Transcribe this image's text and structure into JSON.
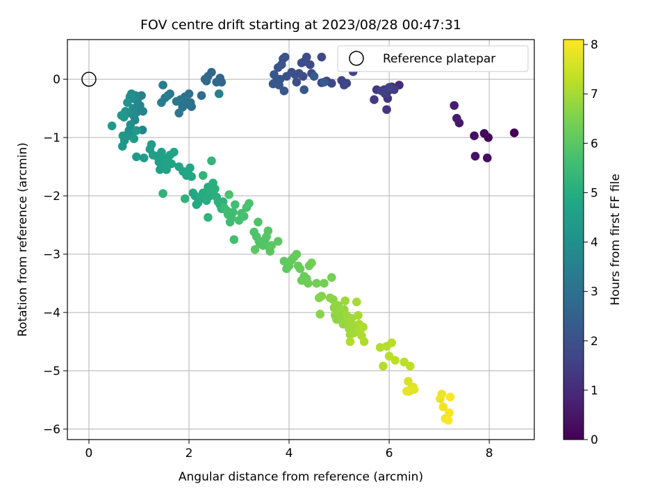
{
  "chart_data": {
    "type": "scatter",
    "title": "FOV centre drift starting at 2023/08/28 00:47:31",
    "xlabel": "Angular distance from reference (arcmin)",
    "ylabel": "Rotation from reference (arcmin)",
    "xlim": [
      -0.43,
      8.9
    ],
    "ylim": [
      -6.18,
      0.68
    ],
    "x_ticks": [
      0,
      2,
      4,
      6,
      8
    ],
    "y_ticks": [
      0,
      -1,
      -2,
      -3,
      -4,
      -5,
      -6
    ],
    "x_tick_labels": [
      "0",
      "2",
      "4",
      "6",
      "8"
    ],
    "y_tick_labels": [
      "0",
      "−1",
      "−2",
      "−3",
      "−4",
      "−5",
      "−6"
    ],
    "grid": true,
    "legend": {
      "position": "top-right",
      "label": "Reference platepar"
    },
    "reference_point": {
      "x": 0,
      "y": 0
    },
    "colorbar": {
      "label": "Hours from first FF file",
      "range": [
        0,
        8.1
      ],
      "ticks": [
        0,
        1,
        2,
        3,
        4,
        5,
        6,
        7,
        8
      ],
      "tick_labels": [
        "0",
        "1",
        "2",
        "3",
        "4",
        "5",
        "6",
        "7",
        "8"
      ],
      "colormap": "viridis"
    },
    "series": [
      {
        "hour_range": [
          0.0,
          0.7
        ],
        "points": [
          [
            8.5,
            -0.92
          ],
          [
            7.98,
            -1.0
          ],
          [
            7.9,
            -0.93
          ],
          [
            7.96,
            -1.35
          ],
          [
            7.7,
            -0.97
          ],
          [
            7.72,
            -1.32
          ],
          [
            7.4,
            -0.75
          ],
          [
            7.35,
            -0.67
          ],
          [
            7.3,
            -0.45
          ]
        ]
      },
      {
        "hour_range": [
          1.0,
          1.6
        ],
        "points": [
          [
            6.2,
            -0.1
          ],
          [
            6.05,
            -0.13
          ],
          [
            5.98,
            -0.2
          ],
          [
            5.9,
            -0.18
          ],
          [
            5.95,
            -0.52
          ],
          [
            5.97,
            -0.33
          ],
          [
            5.75,
            -0.18
          ],
          [
            5.7,
            -0.35
          ],
          [
            6.1,
            -0.18
          ],
          [
            5.92,
            -0.25
          ],
          [
            5.85,
            -0.2
          ],
          [
            6.0,
            -0.14
          ]
        ]
      },
      {
        "hour_range": [
          1.6,
          2.3
        ],
        "points": [
          [
            5.28,
            0.13
          ],
          [
            5.15,
            -0.07
          ],
          [
            5.05,
            -0.02
          ],
          [
            5.1,
            -0.1
          ],
          [
            4.85,
            -0.07
          ],
          [
            4.75,
            -0.03
          ],
          [
            4.65,
            -0.06
          ],
          [
            4.65,
            0.38
          ],
          [
            4.45,
            0.1
          ],
          [
            4.42,
            0.25
          ],
          [
            4.35,
            0.38
          ],
          [
            4.3,
            0.3
          ],
          [
            4.28,
            0.05
          ],
          [
            4.25,
            0.28
          ],
          [
            4.2,
            0.1
          ],
          [
            4.15,
            -0.05
          ],
          [
            4.12,
            0.08
          ],
          [
            4.05,
            0.12
          ],
          [
            3.95,
            0.05
          ],
          [
            3.92,
            0.38
          ],
          [
            3.88,
            0.35
          ],
          [
            3.85,
            0.25
          ],
          [
            3.82,
            0.0
          ],
          [
            3.8,
            -0.1
          ],
          [
            3.78,
            0.2
          ],
          [
            3.75,
            -0.03
          ],
          [
            3.7,
            0.08
          ],
          [
            3.68,
            -0.08
          ],
          [
            3.9,
            -0.2
          ],
          [
            4.3,
            -0.18
          ],
          [
            4.5,
            0.05
          ],
          [
            4.7,
            -0.05
          ]
        ]
      },
      {
        "hour_range": [
          2.6,
          3.5
        ],
        "points": [
          [
            2.65,
            -0.05
          ],
          [
            2.62,
            0.02
          ],
          [
            2.55,
            -0.05
          ],
          [
            2.45,
            0.12
          ],
          [
            2.38,
            0.05
          ],
          [
            2.35,
            -0.03
          ],
          [
            2.32,
            0.0
          ],
          [
            2.25,
            -0.28
          ],
          [
            2.05,
            -0.47
          ],
          [
            2.03,
            -0.4
          ],
          [
            2.0,
            -0.25
          ],
          [
            1.97,
            -0.43
          ],
          [
            1.95,
            -0.38
          ],
          [
            1.92,
            -0.3
          ],
          [
            1.87,
            -0.48
          ],
          [
            1.83,
            -0.35
          ],
          [
            1.8,
            -0.58
          ],
          [
            1.75,
            -0.38
          ],
          [
            1.62,
            -0.25
          ],
          [
            1.58,
            -0.28
          ],
          [
            1.52,
            -0.32
          ],
          [
            1.48,
            -0.1
          ],
          [
            1.45,
            -0.4
          ],
          [
            1.05,
            -0.28
          ],
          [
            2.6,
            -0.25
          ]
        ]
      },
      {
        "hour_range": [
          3.6,
          4.4
        ],
        "points": [
          [
            1.08,
            -0.55
          ],
          [
            1.07,
            -0.87
          ],
          [
            1.02,
            -0.45
          ],
          [
            0.97,
            -0.38
          ],
          [
            0.95,
            -0.57
          ],
          [
            0.93,
            -0.28
          ],
          [
            0.92,
            -0.7
          ],
          [
            0.9,
            -0.63
          ],
          [
            0.88,
            -0.5
          ],
          [
            0.87,
            -0.33
          ],
          [
            0.86,
            -0.95
          ],
          [
            0.85,
            -0.25
          ],
          [
            0.83,
            -0.78
          ],
          [
            0.82,
            -0.3
          ],
          [
            0.8,
            -0.88
          ],
          [
            0.78,
            -0.58
          ],
          [
            0.77,
            -0.4
          ],
          [
            0.76,
            -0.98
          ],
          [
            0.73,
            -0.55
          ],
          [
            0.71,
            -1.05
          ],
          [
            0.7,
            -0.65
          ],
          [
            0.68,
            -0.97
          ],
          [
            0.67,
            -1.15
          ],
          [
            0.65,
            -0.62
          ],
          [
            0.46,
            -0.8
          ],
          [
            0.95,
            -0.88
          ],
          [
            0.9,
            -1.02
          ]
        ]
      },
      {
        "hour_range": [
          4.4,
          5.3
        ],
        "points": [
          [
            0.95,
            -1.33
          ],
          [
            1.1,
            -1.35
          ],
          [
            1.25,
            -1.12
          ],
          [
            1.22,
            -1.2
          ],
          [
            1.28,
            -1.3
          ],
          [
            1.35,
            -1.32
          ],
          [
            1.4,
            -1.42
          ],
          [
            1.42,
            -1.55
          ],
          [
            1.45,
            -1.25
          ],
          [
            1.48,
            -1.35
          ],
          [
            1.52,
            -1.45
          ],
          [
            1.55,
            -1.55
          ],
          [
            1.58,
            -1.4
          ],
          [
            1.62,
            -1.3
          ],
          [
            1.65,
            -1.45
          ],
          [
            1.7,
            -1.25
          ],
          [
            1.8,
            -1.5
          ],
          [
            1.88,
            -1.58
          ],
          [
            1.95,
            -1.65
          ],
          [
            1.98,
            -1.6
          ],
          [
            2.02,
            -1.52
          ],
          [
            2.05,
            -1.67
          ],
          [
            2.08,
            -1.95
          ],
          [
            2.12,
            -2.0
          ],
          [
            2.15,
            -2.15
          ],
          [
            2.18,
            -2.12
          ],
          [
            2.22,
            -2.02
          ],
          [
            2.28,
            -1.95
          ],
          [
            2.32,
            -2.05
          ],
          [
            2.35,
            -2.08
          ],
          [
            2.38,
            -1.85
          ],
          [
            2.42,
            -2.0
          ],
          [
            2.45,
            -1.92
          ],
          [
            2.48,
            -1.78
          ],
          [
            2.52,
            -1.88
          ],
          [
            2.55,
            -2.02
          ],
          [
            2.58,
            -2.1
          ],
          [
            2.62,
            -2.15
          ],
          [
            2.65,
            -2.22
          ],
          [
            2.68,
            -2.1
          ],
          [
            1.48,
            -1.96
          ],
          [
            1.92,
            -2.05
          ],
          [
            2.38,
            -2.37
          ],
          [
            2.45,
            -1.4
          ],
          [
            2.28,
            -1.65
          ]
        ]
      },
      {
        "hour_range": [
          5.5,
          6.4
        ],
        "points": [
          [
            2.7,
            -2.2
          ],
          [
            2.75,
            -2.25
          ],
          [
            2.78,
            -2.32
          ],
          [
            2.82,
            -2.45
          ],
          [
            2.85,
            -2.38
          ],
          [
            2.88,
            -2.28
          ],
          [
            2.92,
            -2.15
          ],
          [
            2.9,
            -2.75
          ],
          [
            3.0,
            -2.42
          ],
          [
            3.05,
            -2.3
          ],
          [
            3.1,
            -2.35
          ],
          [
            3.15,
            -2.2
          ],
          [
            3.2,
            -2.13
          ],
          [
            2.8,
            -1.98
          ],
          [
            3.3,
            -2.62
          ],
          [
            3.35,
            -2.7
          ],
          [
            3.38,
            -2.45
          ],
          [
            3.4,
            -2.78
          ],
          [
            3.42,
            -2.82
          ],
          [
            3.48,
            -2.85
          ],
          [
            3.52,
            -2.75
          ],
          [
            3.55,
            -2.7
          ],
          [
            3.58,
            -2.6
          ],
          [
            3.6,
            -2.88
          ],
          [
            3.62,
            -2.95
          ],
          [
            3.65,
            -2.85
          ],
          [
            3.32,
            -2.92
          ],
          [
            3.78,
            -2.78
          ],
          [
            3.9,
            -3.12
          ],
          [
            3.95,
            -3.25
          ],
          [
            4.0,
            -3.2
          ],
          [
            4.05,
            -3.1
          ],
          [
            4.1,
            -3.05
          ],
          [
            4.15,
            -3.0
          ],
          [
            4.18,
            -3.2
          ],
          [
            4.22,
            -3.25
          ],
          [
            4.25,
            -3.45
          ],
          [
            4.3,
            -3.38
          ],
          [
            4.35,
            -3.42
          ],
          [
            4.38,
            -3.5
          ],
          [
            4.4,
            -3.2
          ],
          [
            4.45,
            -3.15
          ],
          [
            4.55,
            -3.5
          ],
          [
            4.7,
            -3.5
          ],
          [
            4.85,
            -3.4
          ]
        ]
      },
      {
        "hour_range": [
          6.6,
          7.3
        ],
        "points": [
          [
            4.6,
            -3.75
          ],
          [
            4.65,
            -3.72
          ],
          [
            4.62,
            -4.03
          ],
          [
            4.82,
            -3.75
          ],
          [
            4.88,
            -3.78
          ],
          [
            4.9,
            -3.92
          ],
          [
            4.92,
            -4.05
          ],
          [
            4.95,
            -4.12
          ],
          [
            4.98,
            -3.88
          ],
          [
            5.0,
            -4.0
          ],
          [
            5.05,
            -4.1
          ],
          [
            5.08,
            -4.2
          ],
          [
            5.1,
            -3.95
          ],
          [
            5.12,
            -3.8
          ],
          [
            5.15,
            -4.05
          ],
          [
            5.18,
            -4.15
          ],
          [
            5.2,
            -4.28
          ],
          [
            5.22,
            -4.38
          ],
          [
            5.25,
            -4.1
          ],
          [
            5.28,
            -4.22
          ],
          [
            5.3,
            -4.35
          ],
          [
            5.35,
            -3.82
          ],
          [
            5.38,
            -4.05
          ],
          [
            5.4,
            -4.2
          ],
          [
            5.42,
            -4.3
          ],
          [
            5.45,
            -4.4
          ],
          [
            5.48,
            -4.25
          ],
          [
            5.5,
            -4.5
          ],
          [
            5.22,
            -4.5
          ],
          [
            5.82,
            -4.6
          ],
          [
            5.88,
            -4.92
          ],
          [
            5.95,
            -4.58
          ],
          [
            6.0,
            -4.75
          ],
          [
            6.05,
            -4.52
          ],
          [
            6.12,
            -4.82
          ],
          [
            6.3,
            -4.85
          ],
          [
            6.42,
            -4.92
          ]
        ]
      },
      {
        "hour_range": [
          7.6,
          8.1
        ],
        "points": [
          [
            6.38,
            -5.18
          ],
          [
            6.4,
            -5.35
          ],
          [
            6.45,
            -5.3
          ],
          [
            6.48,
            -5.28
          ],
          [
            6.5,
            -5.32
          ],
          [
            6.35,
            -5.35
          ],
          [
            7.02,
            -5.48
          ],
          [
            7.05,
            -5.4
          ],
          [
            7.08,
            -5.62
          ],
          [
            7.12,
            -5.82
          ],
          [
            7.2,
            -5.72
          ],
          [
            7.22,
            -5.45
          ],
          [
            7.18,
            -5.85
          ]
        ]
      }
    ]
  }
}
